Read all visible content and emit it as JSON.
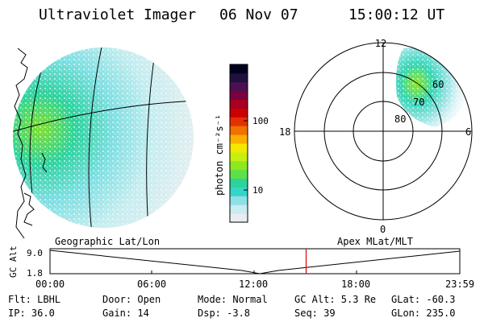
{
  "header": {
    "instrument": "Ultraviolet Imager",
    "date": "06 Nov 07",
    "time": "15:00:12 UT"
  },
  "colorbar": {
    "label": "photon cm⁻²s⁻¹",
    "ticks": [
      "100",
      "10"
    ],
    "colors": [
      "#e8eef0",
      "#c8ecf0",
      "#8fe0e6",
      "#35d6c8",
      "#2cd39a",
      "#5ee04a",
      "#8de820",
      "#c8ee10",
      "#f4e800",
      "#f8b000",
      "#f07000",
      "#e43000",
      "#cc0000",
      "#a80020",
      "#7a0040",
      "#4a1050",
      "#201040",
      "#000020"
    ]
  },
  "geo_panel": {
    "caption": "Geographic Lat/Lon"
  },
  "polar_panel": {
    "caption": "Apex MLat/MLT",
    "mlt_labels": {
      "top": "12",
      "left": "18",
      "right": "6",
      "bottom": "0"
    },
    "lat_labels": [
      "60",
      "70",
      "80"
    ]
  },
  "altitude_plot": {
    "ylabel": "GC Alt",
    "y_ticks": [
      "9.0",
      "1.8"
    ],
    "x_ticks": [
      "00:00",
      "06:00",
      "12:00",
      "18:00",
      "23:59"
    ],
    "marker_color": "#e00000",
    "marker_time_hours": 15.0
  },
  "info": {
    "flt": "Flt: LBHL",
    "ip": "IP: 36.0",
    "door": "Door: Open",
    "gain": "Gain: 14",
    "mode": "Mode: Normal",
    "dsp": "Dsp:   -3.8",
    "gcalt": "GC Alt: 5.3 Re",
    "seq": "Seq: 39",
    "glat": "GLat: -60.3",
    "glon": "GLon: 235.0"
  }
}
